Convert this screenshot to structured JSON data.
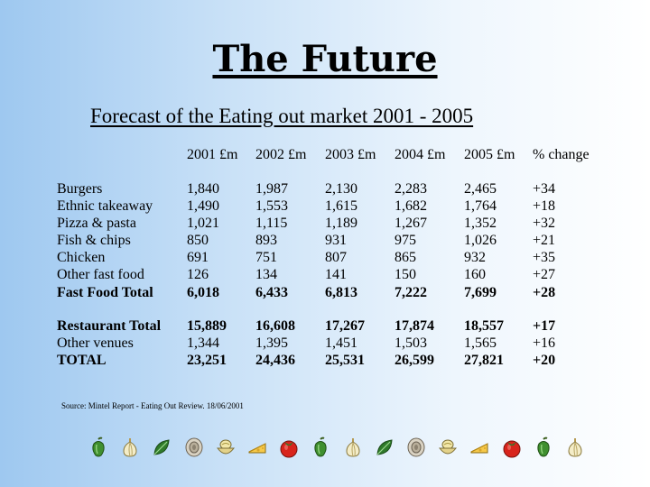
{
  "title": "The Future",
  "subtitle": "Forecast of the Eating out market 2001 - 2005",
  "table": {
    "headers": [
      "2001 £m",
      "2002 £m",
      "2003 £m",
      "2004 £m",
      "2005 £m",
      "% change"
    ],
    "rows": [
      {
        "label": "Burgers",
        "values": [
          "1,840",
          "1,987",
          "2,130",
          "2,283",
          "2,465",
          "+34"
        ],
        "bold": false
      },
      {
        "label": "Ethnic takeaway",
        "values": [
          "1,490",
          "1,553",
          "1,615",
          "1,682",
          "1,764",
          "+18"
        ],
        "bold": false
      },
      {
        "label": "Pizza & pasta",
        "values": [
          "1,021",
          "1,115",
          "1,189",
          "1,267",
          "1,352",
          "+32"
        ],
        "bold": false
      },
      {
        "label": "Fish & chips",
        "values": [
          "850",
          "893",
          "931",
          "975",
          "1,026",
          "+21"
        ],
        "bold": false
      },
      {
        "label": "Chicken",
        "values": [
          "691",
          "751",
          "807",
          "865",
          "932",
          "+35"
        ],
        "bold": false
      },
      {
        "label": "Other fast food",
        "values": [
          "126",
          "134",
          "141",
          "150",
          "160",
          "+27"
        ],
        "bold": false
      },
      {
        "label": "Fast Food Total",
        "values": [
          "6,018",
          "6,433",
          "6,813",
          "7,222",
          "7,699",
          "+28"
        ],
        "bold": true
      },
      {
        "label": "Restaurant Total",
        "values": [
          "15,889",
          "16,608",
          "17,267",
          "17,874",
          "18,557",
          "+17"
        ],
        "bold": true
      },
      {
        "label": "Other venues",
        "values": [
          "1,344",
          "1,395",
          "1,451",
          "1,503",
          "1,565",
          "+16"
        ],
        "bold": false
      },
      {
        "label": "TOTAL",
        "values": [
          "23,251",
          "24,436",
          "25,531",
          "26,599",
          "27,821",
          "+20"
        ],
        "bold": true
      }
    ]
  },
  "source": "Source: Mintel Report - Eating Out Review. 18/06/2001",
  "footer_icons": [
    "pepper-icon",
    "garlic-icon",
    "leaf-icon",
    "mushroom-icon",
    "bowl-icon",
    "cheese-icon",
    "tomato-icon",
    "pepper-icon",
    "garlic-icon",
    "leaf-icon",
    "mushroom-icon",
    "bowl-icon",
    "cheese-icon",
    "tomato-icon",
    "pepper-icon",
    "garlic-icon"
  ]
}
